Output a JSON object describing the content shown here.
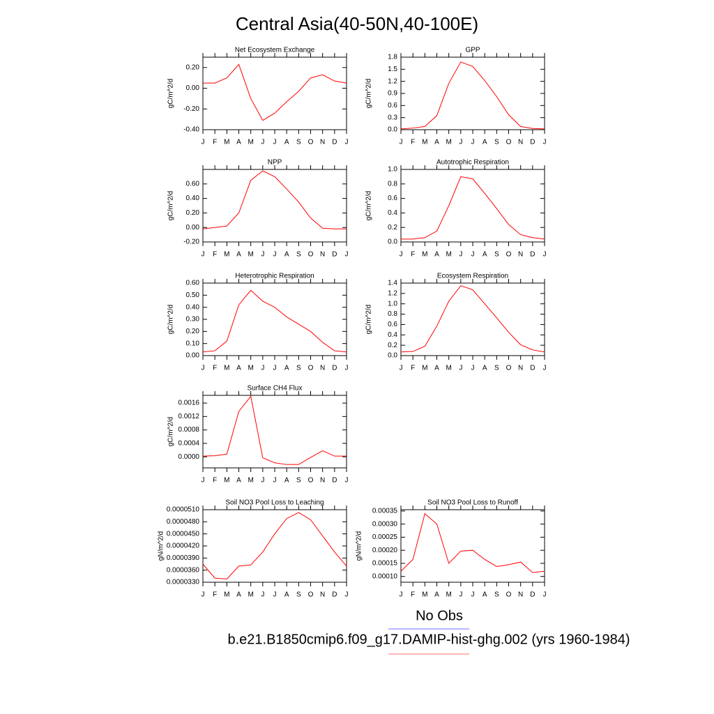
{
  "title": "Central Asia(40-50N,40-100E)",
  "legend": [
    {
      "label": "No Obs",
      "color": "#6f6fff"
    },
    {
      "label": "b.e21.B1850cmip6.f09_g17.DAMIP-hist-ghg.002 (yrs 1960-1984)",
      "color": "#ff6f6f"
    }
  ],
  "chart_data": [
    {
      "type": "line",
      "title": "Net Ecosystem Exchange",
      "y_label": "gC/m^2/d",
      "color": "#ff0000",
      "categories": [
        "J",
        "F",
        "M",
        "A",
        "M",
        "J",
        "J",
        "A",
        "S",
        "O",
        "N",
        "D",
        "J"
      ],
      "values": [
        0.05,
        0.05,
        0.1,
        0.23,
        -0.1,
        -0.31,
        -0.24,
        -0.13,
        -0.03,
        0.1,
        0.13,
        0.07,
        0.05
      ],
      "ylim": [
        -0.4,
        0.3
      ],
      "yticks": [
        {
          "value": 0.2,
          "label": "0.20"
        },
        {
          "value": 0,
          "label": "0.00"
        },
        {
          "value": -0.2,
          "label": "-0.20"
        },
        {
          "value": -0.4,
          "label": "-0.40"
        }
      ]
    },
    {
      "type": "line",
      "title": "GPP",
      "y_label": "gC/m^2/d",
      "color": "#ff0000",
      "categories": [
        "J",
        "F",
        "M",
        "A",
        "M",
        "J",
        "J",
        "A",
        "S",
        "O",
        "N",
        "D",
        "J"
      ],
      "values": [
        0.02,
        0.04,
        0.08,
        0.35,
        1.15,
        1.68,
        1.57,
        1.22,
        0.82,
        0.37,
        0.08,
        0.03,
        0.02
      ],
      "ylim": [
        0,
        1.8
      ],
      "yticks": [
        {
          "value": 0,
          "label": "0.0"
        },
        0.3,
        0.6,
        0.9,
        1.2,
        1.5,
        1.8
      ]
    },
    {
      "type": "line",
      "title": "NPP",
      "y_label": "gC/m^2/d",
      "color": "#ff0000",
      "categories": [
        "J",
        "F",
        "M",
        "A",
        "M",
        "J",
        "J",
        "A",
        "S",
        "O",
        "N",
        "D",
        "J"
      ],
      "values": [
        -0.02,
        0.0,
        0.02,
        0.2,
        0.65,
        0.78,
        0.7,
        0.53,
        0.35,
        0.13,
        -0.01,
        -0.02,
        -0.02
      ],
      "ylim": [
        -0.2,
        0.8
      ],
      "yticks": [
        {
          "value": 0.6,
          "label": "0.60"
        },
        {
          "value": 0.4,
          "label": "0.40"
        },
        {
          "value": 0.2,
          "label": "0.20"
        },
        {
          "value": 0,
          "label": "0.00"
        },
        {
          "value": -0.2,
          "label": "-0.20"
        }
      ]
    },
    {
      "type": "line",
      "title": "Autotrophic Respiration",
      "y_label": "gC/m^2/d",
      "color": "#ff0000",
      "categories": [
        "J",
        "F",
        "M",
        "A",
        "M",
        "J",
        "J",
        "A",
        "S",
        "O",
        "N",
        "D",
        "J"
      ],
      "values": [
        0.04,
        0.04,
        0.06,
        0.15,
        0.5,
        0.9,
        0.87,
        0.67,
        0.46,
        0.24,
        0.1,
        0.06,
        0.04
      ],
      "ylim": [
        0,
        1.0
      ],
      "yticks": [
        {
          "value": 0,
          "label": "0.0"
        },
        0.2,
        0.4,
        0.6,
        0.8,
        {
          "value": 1.0,
          "label": "1.0"
        }
      ]
    },
    {
      "type": "line",
      "title": "Heterotrophic Respiration",
      "y_label": "gC/m^2/d",
      "color": "#ff0000",
      "categories": [
        "J",
        "F",
        "M",
        "A",
        "M",
        "J",
        "J",
        "A",
        "S",
        "O",
        "N",
        "D",
        "J"
      ],
      "values": [
        0.03,
        0.04,
        0.12,
        0.42,
        0.54,
        0.45,
        0.4,
        0.32,
        0.26,
        0.2,
        0.11,
        0.04,
        0.03
      ],
      "ylim": [
        0,
        0.6
      ],
      "yticks": [
        {
          "value": 0,
          "label": "0.00"
        },
        {
          "value": 0.1,
          "label": "0.10"
        },
        {
          "value": 0.2,
          "label": "0.20"
        },
        {
          "value": 0.3,
          "label": "0.30"
        },
        {
          "value": 0.4,
          "label": "0.40"
        },
        {
          "value": 0.5,
          "label": "0.50"
        },
        {
          "value": 0.6,
          "label": "0.60"
        }
      ]
    },
    {
      "type": "line",
      "title": "Ecosystem Respiration",
      "y_label": "gC/m^2/d",
      "color": "#ff0000",
      "categories": [
        "J",
        "F",
        "M",
        "A",
        "M",
        "J",
        "J",
        "A",
        "S",
        "O",
        "N",
        "D",
        "J"
      ],
      "values": [
        0.07,
        0.08,
        0.18,
        0.57,
        1.05,
        1.35,
        1.27,
        1.0,
        0.73,
        0.45,
        0.21,
        0.11,
        0.07
      ],
      "ylim": [
        0,
        1.4
      ],
      "yticks": [
        {
          "value": 0,
          "label": "0.0"
        },
        0.2,
        0.4,
        0.6,
        0.8,
        {
          "value": 1.0,
          "label": "1.0"
        },
        1.2,
        1.4
      ]
    },
    {
      "type": "line",
      "title": "Surface CH4 Flux",
      "y_label": "gC/m^2/d",
      "color": "#ff0000",
      "categories": [
        "J",
        "F",
        "M",
        "A",
        "M",
        "J",
        "J",
        "A",
        "S",
        "O",
        "N",
        "D",
        "J"
      ],
      "values": [
        2e-05,
        3e-05,
        8e-05,
        0.00135,
        0.0018,
        -3e-05,
        -0.00018,
        -0.00023,
        -0.00023,
        -2e-05,
        0.00018,
        2e-05,
        2e-05
      ],
      "ylim": [
        -0.00033,
        0.00183
      ],
      "yticks": [
        {
          "value": 0,
          "label": "0.0000"
        },
        {
          "value": 0.0004,
          "label": "0.0004"
        },
        {
          "value": 0.0008,
          "label": "0.0008"
        },
        {
          "value": 0.0012,
          "label": "0.0012"
        },
        {
          "value": 0.0016,
          "label": "0.0016"
        }
      ]
    },
    {
      "type": "line",
      "title": "Soil NO3 Pool Loss to Leaching",
      "y_label": "gN/m^2/d",
      "color": "#ff0000",
      "categories": [
        "J",
        "F",
        "M",
        "A",
        "M",
        "J",
        "J",
        "A",
        "S",
        "O",
        "N",
        "D",
        "J"
      ],
      "values": [
        3.75e-05,
        3.4e-05,
        3.38e-05,
        3.7e-05,
        3.73e-05,
        4.05e-05,
        4.5e-05,
        4.88e-05,
        5.03e-05,
        4.85e-05,
        4.45e-05,
        4.05e-05,
        3.7e-05
      ],
      "ylim": [
        3.3e-05,
        5.1e-05
      ],
      "yticks": [
        {
          "value": 3.3e-05,
          "label": "0.0000330"
        },
        {
          "value": 3.6e-05,
          "label": "0.0000360"
        },
        {
          "value": 3.9e-05,
          "label": "0.0000390"
        },
        {
          "value": 4.2e-05,
          "label": "0.0000420"
        },
        {
          "value": 4.5e-05,
          "label": "0.0000450"
        },
        {
          "value": 4.8e-05,
          "label": "0.0000480"
        },
        {
          "value": 5.1e-05,
          "label": "0.0000510"
        }
      ]
    },
    {
      "type": "line",
      "title": "Soil NO3 Pool Loss to Runoff",
      "y_label": "gN/m^2/d",
      "color": "#ff0000",
      "categories": [
        "J",
        "F",
        "M",
        "A",
        "M",
        "J",
        "J",
        "A",
        "S",
        "O",
        "N",
        "D",
        "J"
      ],
      "values": [
        0.00012,
        0.000165,
        0.00034,
        0.0003,
        0.00015,
        0.000197,
        0.0002,
        0.000165,
        0.000138,
        0.000145,
        0.000155,
        0.000115,
        0.00012
      ],
      "ylim": [
        7.8e-05,
        0.000355
      ],
      "yticks": [
        {
          "value": 0.0001,
          "label": "0.00010"
        },
        {
          "value": 0.00015,
          "label": "0.00015"
        },
        {
          "value": 0.0002,
          "label": "0.00020"
        },
        {
          "value": 0.00025,
          "label": "0.00025"
        },
        {
          "value": 0.0003,
          "label": "0.00030"
        },
        {
          "value": 0.00035,
          "label": "0.00035"
        }
      ]
    }
  ]
}
